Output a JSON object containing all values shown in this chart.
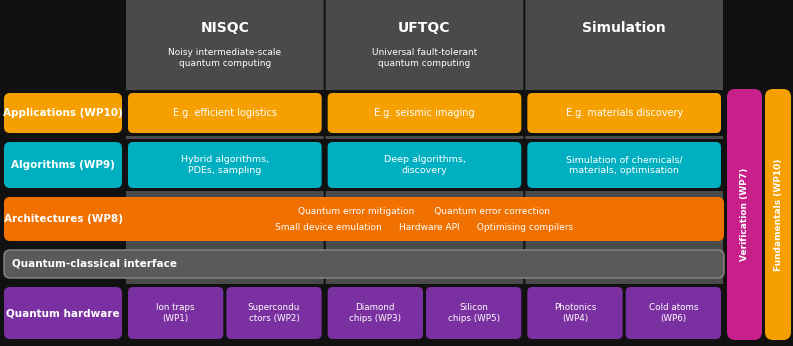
{
  "bg_color": "#111111",
  "dark_gray": "#4a4a4a",
  "mid_gray": "#5a5a5a",
  "orange": "#f5a000",
  "teal": "#00afc0",
  "arch_orange": "#f07000",
  "purple": "#7a30a0",
  "magenta": "#c8208a",
  "white": "#ffffff",
  "col_headers": [
    {
      "label": "NISQC",
      "sub": "Noisy intermediate-scale\nquantum computing"
    },
    {
      "label": "UFTQC",
      "sub": "Universal fault-tolerant\nquantum computing"
    },
    {
      "label": "Simulation",
      "sub": ""
    }
  ],
  "row_labels": [
    {
      "text": "Applications (WP10)",
      "color": "#f5a000"
    },
    {
      "text": "Algorithms (WP9)",
      "color": "#00afc0"
    },
    {
      "text": "Architectures (WP8)",
      "color": "#f07000"
    },
    {
      "text": "Quantum-classical interface",
      "color": "#5a5a5a"
    },
    {
      "text": "Quantum hardware",
      "color": "#7a30a0"
    }
  ],
  "app_cells": [
    "E.g. efficient logistics",
    "E.g. seismic imaging",
    "E.g. materials discovery"
  ],
  "alg_cells": [
    "Hybrid algorithms,\nPDEs, sampling",
    "Deep algorithms,\ndiscovery",
    "Simulation of chemicals/\nmaterials, optimisation"
  ],
  "arch_text_line1": "Quantum error mitigation       Quantum error correction",
  "arch_text_line2": "Small device emulation      Hardware API      Optimising compilers",
  "hw_cells": [
    [
      "Ion traps\n(WP1)",
      "Supercondu\nctors (WP2)"
    ],
    [
      "Diamond\nchips (WP3)",
      "Silicon\nchips (WP5)"
    ],
    [
      "Photonics\n(WP4)",
      "Cold atoms\n(WP6)"
    ]
  ],
  "side_labels": [
    {
      "text": "Verification (WP7)",
      "color": "#c8208a"
    },
    {
      "text": "Fundamentals (WP10)",
      "color": "#f5a000"
    }
  ]
}
